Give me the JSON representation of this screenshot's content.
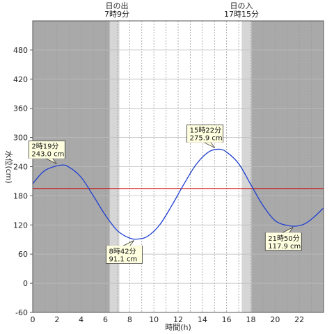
{
  "chart_data": {
    "type": "line",
    "xlabel": "時間(h)",
    "ylabel": "水位(cm)",
    "xlim": [
      0,
      24
    ],
    "ylim": [
      -60,
      540
    ],
    "x_ticks": [
      "0",
      "2",
      "4",
      "6",
      "8",
      "10",
      "12",
      "14",
      "16",
      "18",
      "20",
      "22"
    ],
    "y_ticks": [
      "-60",
      "0",
      "60",
      "120",
      "180",
      "240",
      "300",
      "360",
      "420",
      "480"
    ],
    "reference_line": {
      "value": 195,
      "color": "#cc0000"
    },
    "series": [
      {
        "color": "#1f3fd0",
        "x": [
          0,
          1,
          2.3167,
          3,
          4,
          5,
          6,
          7,
          8,
          8.7,
          9.5,
          10.5,
          11.5,
          12.5,
          13.5,
          14.5,
          15.3667,
          16,
          17,
          18,
          19,
          20,
          21,
          21.8333,
          22.5,
          23.2,
          24
        ],
        "y": [
          205,
          232,
          243.0,
          239,
          218,
          180,
          140,
          108,
          93,
          91.1,
          97,
          121,
          161,
          205,
          245,
          270,
          275.9,
          270,
          246,
          203,
          160,
          129,
          119,
          117.9,
          123,
          136,
          155
        ]
      }
    ],
    "sun": {
      "sunrise_title": "日の出",
      "sunrise_time": "7時9分",
      "sunrise_hour": 7.15,
      "sunset_title": "日の入",
      "sunset_time": "17時15分",
      "sunset_hour": 17.25,
      "twilight_hours": 0.8,
      "night_color": "#a9a9a9",
      "twilight_color": "#d6d6d6",
      "day_color": "#ffffff"
    },
    "annotations": [
      {
        "time": "2時19分",
        "level": "243.0 cm",
        "x": 2.3167,
        "y": 243.0,
        "anchor": "above-left"
      },
      {
        "time": "8時42分",
        "level": "91.1 cm",
        "x": 8.7,
        "y": 91.1,
        "anchor": "below-left"
      },
      {
        "time": "15時22分",
        "level": "275.9 cm",
        "x": 15.3667,
        "y": 275.9,
        "anchor": "above-left"
      },
      {
        "time": "21時50分",
        "level": "117.9 cm",
        "x": 21.8333,
        "y": 117.9,
        "anchor": "below-left"
      }
    ]
  }
}
